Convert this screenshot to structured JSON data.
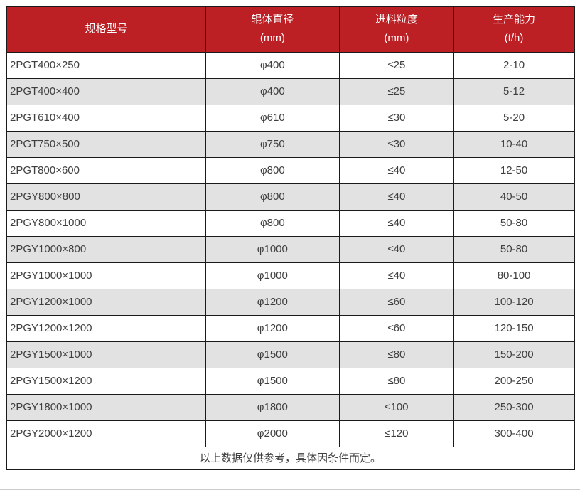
{
  "chart_data": {
    "type": "table",
    "columns": [
      {
        "label": "规格型号",
        "unit": ""
      },
      {
        "label": "辊体直径",
        "unit": "(mm)"
      },
      {
        "label": "进料粒度",
        "unit": "(mm)"
      },
      {
        "label": "生产能力",
        "unit": "(t/h)"
      }
    ],
    "rows": [
      [
        "2PGT400×250",
        "φ400",
        "≤25",
        "2-10"
      ],
      [
        "2PGT400×400",
        "φ400",
        "≤25",
        "5-12"
      ],
      [
        "2PGT610×400",
        "φ610",
        "≤30",
        "5-20"
      ],
      [
        "2PGT750×500",
        "φ750",
        "≤30",
        "10-40"
      ],
      [
        "2PGT800×600",
        "φ800",
        "≤40",
        "12-50"
      ],
      [
        "2PGY800×800",
        "φ800",
        "≤40",
        "40-50"
      ],
      [
        "2PGY800×1000",
        "φ800",
        "≤40",
        "50-80"
      ],
      [
        "2PGY1000×800",
        "φ1000",
        "≤40",
        "50-80"
      ],
      [
        "2PGY1000×1000",
        "φ1000",
        "≤40",
        "80-100"
      ],
      [
        "2PGY1200×1000",
        "φ1200",
        "≤60",
        "100-120"
      ],
      [
        "2PGY1200×1200",
        "φ1200",
        "≤60",
        "120-150"
      ],
      [
        "2PGY1500×1000",
        "φ1500",
        "≤80",
        "150-200"
      ],
      [
        "2PGY1500×1200",
        "φ1500",
        "≤80",
        "200-250"
      ],
      [
        "2PGY1800×1000",
        "φ1800",
        "≤100",
        "250-300"
      ],
      [
        "2PGY2000×1200",
        "φ2000",
        "≤120",
        "300-400"
      ]
    ],
    "footnote": "以上数据仅供参考，具体因条件而定。"
  },
  "colors": {
    "header_bg": "#bc2025",
    "header_text": "#ffffff",
    "row_bg": "#ffffff",
    "row_alt_bg": "#e2e2e2",
    "grid_line": "#1a1a1a",
    "body_text": "#3f3f3f",
    "page_edge": "#cccccc"
  }
}
